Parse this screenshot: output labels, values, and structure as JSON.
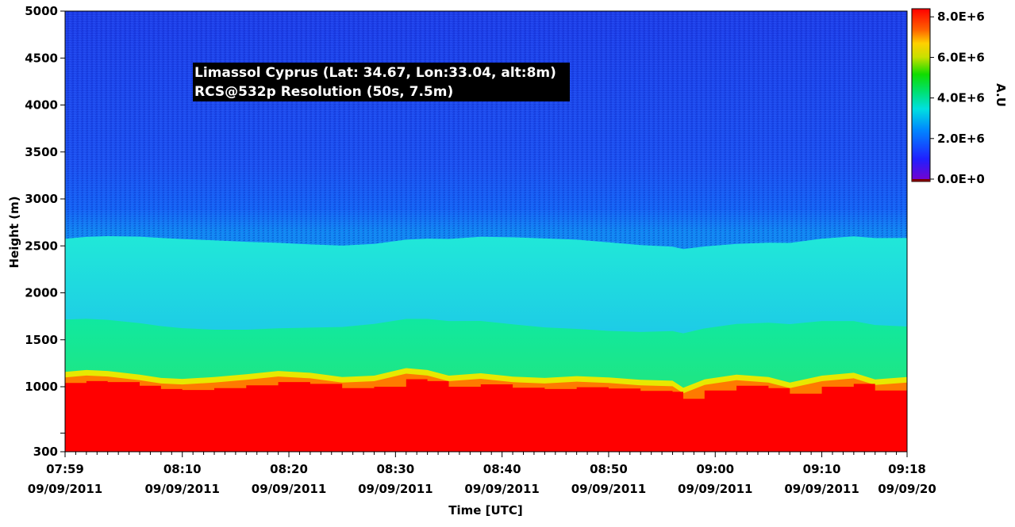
{
  "chart_data": {
    "type": "heatmap",
    "title": "",
    "xlabel": "Time [UTC]",
    "ylabel": "Height (m)",
    "colorbar_label": "A.U",
    "annotation": [
      "Limassol Cyprus (Lat: 34.67, Lon:33.04, alt:8m)",
      "RCS@532p Resolution (50s, 7.5m)"
    ],
    "x_range_minutes_utc": [
      479,
      558
    ],
    "x_ticks": [
      {
        "time": "07:59",
        "date": "09/09/2011",
        "minute": 479
      },
      {
        "time": "08:10",
        "date": "09/09/2011",
        "minute": 490
      },
      {
        "time": "08:20",
        "date": "09/09/2011",
        "minute": 500
      },
      {
        "time": "08:30",
        "date": "09/09/2011",
        "minute": 510
      },
      {
        "time": "08:40",
        "date": "09/09/2011",
        "minute": 520
      },
      {
        "time": "08:50",
        "date": "09/09/2011",
        "minute": 530
      },
      {
        "time": "09:00",
        "date": "09/09/2011",
        "minute": 540
      },
      {
        "time": "09:10",
        "date": "09/09/2011",
        "minute": 550
      },
      {
        "time": "09:18",
        "date": "09/09/20",
        "minute": 558
      }
    ],
    "ylim": [
      300,
      5000
    ],
    "y_ticks": [
      {
        "label": "300",
        "value": 300
      },
      {
        "label": "",
        "value": 500
      },
      {
        "label": "1000",
        "value": 1000
      },
      {
        "label": "1500",
        "value": 1500
      },
      {
        "label": "2000",
        "value": 2000
      },
      {
        "label": "2500",
        "value": 2500
      },
      {
        "label": "3000",
        "value": 3000
      },
      {
        "label": "3500",
        "value": 3500
      },
      {
        "label": "4000",
        "value": 4000
      },
      {
        "label": "4500",
        "value": 4500
      },
      {
        "label": "5000",
        "value": 5000
      }
    ],
    "colorbar": {
      "range": [
        0,
        8400000
      ],
      "ticks": [
        {
          "label": "8.0E+6",
          "value": 8000000
        },
        {
          "label": "6.0E+6",
          "value": 6000000
        },
        {
          "label": "4.0E+6",
          "value": 4000000
        },
        {
          "label": "2.0E+6",
          "value": 2000000
        },
        {
          "label": "0.0E+0",
          "value": 0
        }
      ]
    },
    "boundary_layer_top_m": [
      [
        479,
        1040
      ],
      [
        481,
        1060
      ],
      [
        483,
        1050
      ],
      [
        486,
        1010
      ],
      [
        488,
        975
      ],
      [
        490,
        965
      ],
      [
        493,
        985
      ],
      [
        496,
        1015
      ],
      [
        499,
        1050
      ],
      [
        502,
        1030
      ],
      [
        505,
        985
      ],
      [
        508,
        1000
      ],
      [
        511,
        1080
      ],
      [
        513,
        1060
      ],
      [
        515,
        1000
      ],
      [
        518,
        1025
      ],
      [
        521,
        990
      ],
      [
        524,
        975
      ],
      [
        527,
        995
      ],
      [
        530,
        980
      ],
      [
        533,
        955
      ],
      [
        536,
        945
      ],
      [
        537,
        870
      ],
      [
        539,
        960
      ],
      [
        542,
        1010
      ],
      [
        545,
        985
      ],
      [
        547,
        925
      ],
      [
        550,
        1000
      ],
      [
        553,
        1030
      ],
      [
        555,
        960
      ],
      [
        558,
        985
      ]
    ],
    "aerosol_layers": [
      {
        "name": "",
        "base_m": 1100,
        "top_m": 1650,
        "value": 4500000
      },
      {
        "name": "",
        "base_m": 1650,
        "top_m": 2550,
        "value": 3300000
      }
    ],
    "surface_value": 8000000,
    "free_troposphere_value": 1300000
  }
}
